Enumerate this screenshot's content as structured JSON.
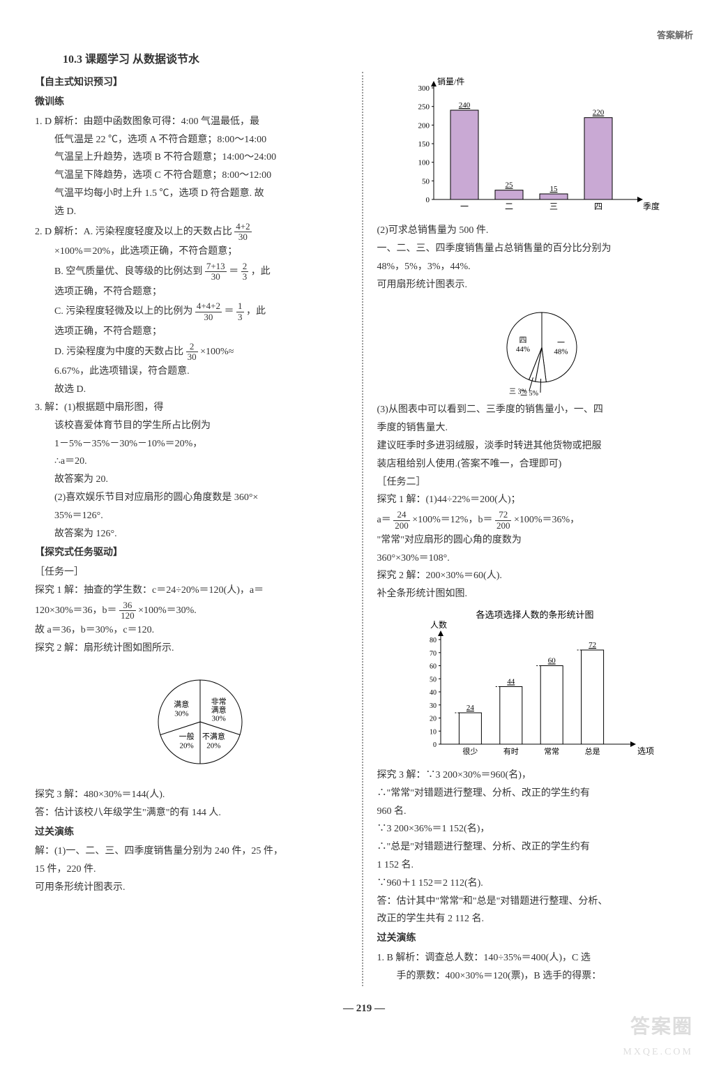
{
  "header": {
    "corner": "答案解析"
  },
  "title": "10.3  课题学习  从数据谈节水",
  "left": {
    "h1": "【自主式知识预习】",
    "h2": "微训练",
    "q1_head": "1. D  解析：由题中函数图象可得：4:00 气温最低，最",
    "q1_l2": "低气温是 22 ℃，选项 A 不符合题意；8:00～14:00",
    "q1_l3": "气温呈上升趋势，选项 B 不符合题意；14:00～24:00",
    "q1_l4": "气温呈下降趋势，选项 C 不符合题意；8:00～12:00",
    "q1_l5": "气温平均每小时上升 1.5 ℃，选项 D 符合题意. 故",
    "q1_l6": "选 D.",
    "q2_head": "2. D  解析：A. 污染程度轻度及以上的天数占比",
    "q2_frac1_num": "4+2",
    "q2_frac1_den": "30",
    "q2_l2": "×100%＝20%，此选项正确，不符合题意；",
    "q2_b": "B. 空气质量优、良等级的比例达到",
    "q2_frac2_num": "7+13",
    "q2_frac2_den": "30",
    "q2_eq": "＝",
    "q2_frac3_num": "2",
    "q2_frac3_den": "3",
    "q2_b2": "，此",
    "q2_b3": "选项正确，不符合题意；",
    "q2_c": "C. 污染程度轻微及以上的比例为",
    "q2_frac4_num": "4+4+2",
    "q2_frac4_den": "30",
    "q2_frac5_num": "1",
    "q2_frac5_den": "3",
    "q2_c2": "，此",
    "q2_c3": "选项正确，不符合题意；",
    "q2_d": "D. 污染程度为中度的天数占比",
    "q2_frac6_num": "2",
    "q2_frac6_den": "30",
    "q2_d2": "×100%≈",
    "q2_d3": "6.67%，此选项错误，符合题意.",
    "q2_d4": "故选 D.",
    "q3_head": "3. 解：(1)根据题中扇形图，得",
    "q3_l2": "该校喜爱体育节目的学生所占比例为",
    "q3_l3": "1－5%－35%－30%－10%＝20%，",
    "q3_l4": "∴a＝20.",
    "q3_l5": "故答案为 20.",
    "q3_l6": "(2)喜欢娱乐节目对应扇形的圆心角度数是 360°×",
    "q3_l7": "35%＝126°.",
    "q3_l8": "故答案为 126°.",
    "h3": "【探究式任务驱动】",
    "task1": "［任务一］",
    "t1_l1": "探究 1  解：抽查的学生数：c＝24÷20%＝120(人)，a＝",
    "t1_l2a": "120×30%＝36，b＝",
    "t1_frac_num": "36",
    "t1_frac_den": "120",
    "t1_l2b": "×100%＝30%.",
    "t1_l3": "故 a＝36，b＝30%，c＝120.",
    "t1_l4": "探究 2  解：扇形统计图如图所示.",
    "pie1": {
      "slices": [
        {
          "label": "非常\n满意",
          "pct": "30%",
          "start": -90,
          "end": 18,
          "color": "#fff"
        },
        {
          "label": "不满意",
          "pct": "20%",
          "start": 18,
          "end": 90,
          "color": "#fff"
        },
        {
          "label": "一般",
          "pct": "20%",
          "start": 90,
          "end": 162,
          "color": "#fff"
        },
        {
          "label": "满意",
          "pct": "30%",
          "start": 162,
          "end": 270,
          "color": "#fff"
        }
      ]
    },
    "t1_l5": "探究 3  解：480×30%＝144(人).",
    "t1_l6": "答：估计该校八年级学生\"满意\"的有 144 人.",
    "gg": "过关演练",
    "gg_l1": "解：(1)一、二、三、四季度销售量分别为 240 件，25 件，",
    "gg_l2": "15 件，220 件.",
    "gg_l3": "可用条形统计图表示."
  },
  "right": {
    "bar1": {
      "ylabel": "销量/件",
      "ymax": 300,
      "ystep": 50,
      "cats": [
        "一",
        "二",
        "三",
        "四"
      ],
      "xlabel": "季度",
      "values": [
        240,
        25,
        15,
        220
      ],
      "bar_color": "#c9a9d4",
      "grid_color": "#333"
    },
    "r_l1": "(2)可求总销售量为 500 件.",
    "r_l2": "一、二、三、四季度销售量占总销售量的百分比分别为",
    "r_l3": "48%，5%，3%，44%.",
    "r_l4": "可用扇形统计图表示.",
    "pie2": {
      "slices": [
        {
          "label": "一",
          "pct": "48%"
        },
        {
          "label": "二",
          "pct": "5%"
        },
        {
          "label": "三",
          "pct": "3% "
        },
        {
          "label": "四",
          "pct": "44%"
        }
      ]
    },
    "r_l5": "(3)从图表中可以看到二、三季度的销售量小，一、四",
    "r_l6": "季度的销售量大.",
    "r_l7": "建议旺季时多进羽绒服，淡季时转进其他货物或把服",
    "r_l8": "装店租给别人使用.(答案不唯一，合理即可)",
    "task2": "［任务二］",
    "r2_l1": "探究 1  解：(1)44÷22%＝200(人)；",
    "r2_l2a": "a＝",
    "r2_frac1_num": "24",
    "r2_frac1_den": "200",
    "r2_l2b": "×100%＝12%，b＝",
    "r2_frac2_num": "72",
    "r2_frac2_den": "200",
    "r2_l2c": "×100%＝36%，",
    "r2_l3": "\"常常\"对应扇形的圆心角的度数为",
    "r2_l4": "360°×30%＝108°.",
    "r2_l5": "探究 2  解：200×30%＝60(人).",
    "r2_l6": "补全条形统计图如图.",
    "bar2": {
      "title": "各选项选择人数的条形统计图",
      "ylabel": "人数",
      "ymax": 80,
      "ystep": 10,
      "cats": [
        "很少",
        "有时",
        "常常",
        "总是"
      ],
      "xlabel": "选项",
      "values": [
        24,
        44,
        60,
        72
      ],
      "bar_color": "#fff"
    },
    "r2_l7": "探究 3  解：∵3 200×30%＝960(名)，",
    "r2_l8": "∴\"常常\"对错题进行整理、分析、改正的学生约有",
    "r2_l9": "960 名.",
    "r2_l10": "∵3 200×36%＝1 152(名)，",
    "r2_l11": "∴\"总是\"对错题进行整理、分析、改正的学生约有",
    "r2_l12": "1 152 名.",
    "r2_l13": "∵960＋1 152＝2 112(名).",
    "r2_l14": "答：估计其中\"常常\"和\"总是\"对错题进行整理、分析、",
    "r2_l15": "改正的学生共有 2 112 名.",
    "gg2": "过关演练",
    "gg2_l1": "1. B  解析：调查总人数：140÷35%＝400(人)，C 选",
    "gg2_l2": "手的票数：400×30%＝120(票)，B 选手的得票："
  },
  "pagenum": "219",
  "watermark": "答案圈",
  "watermark_url": "MXQE.COM"
}
